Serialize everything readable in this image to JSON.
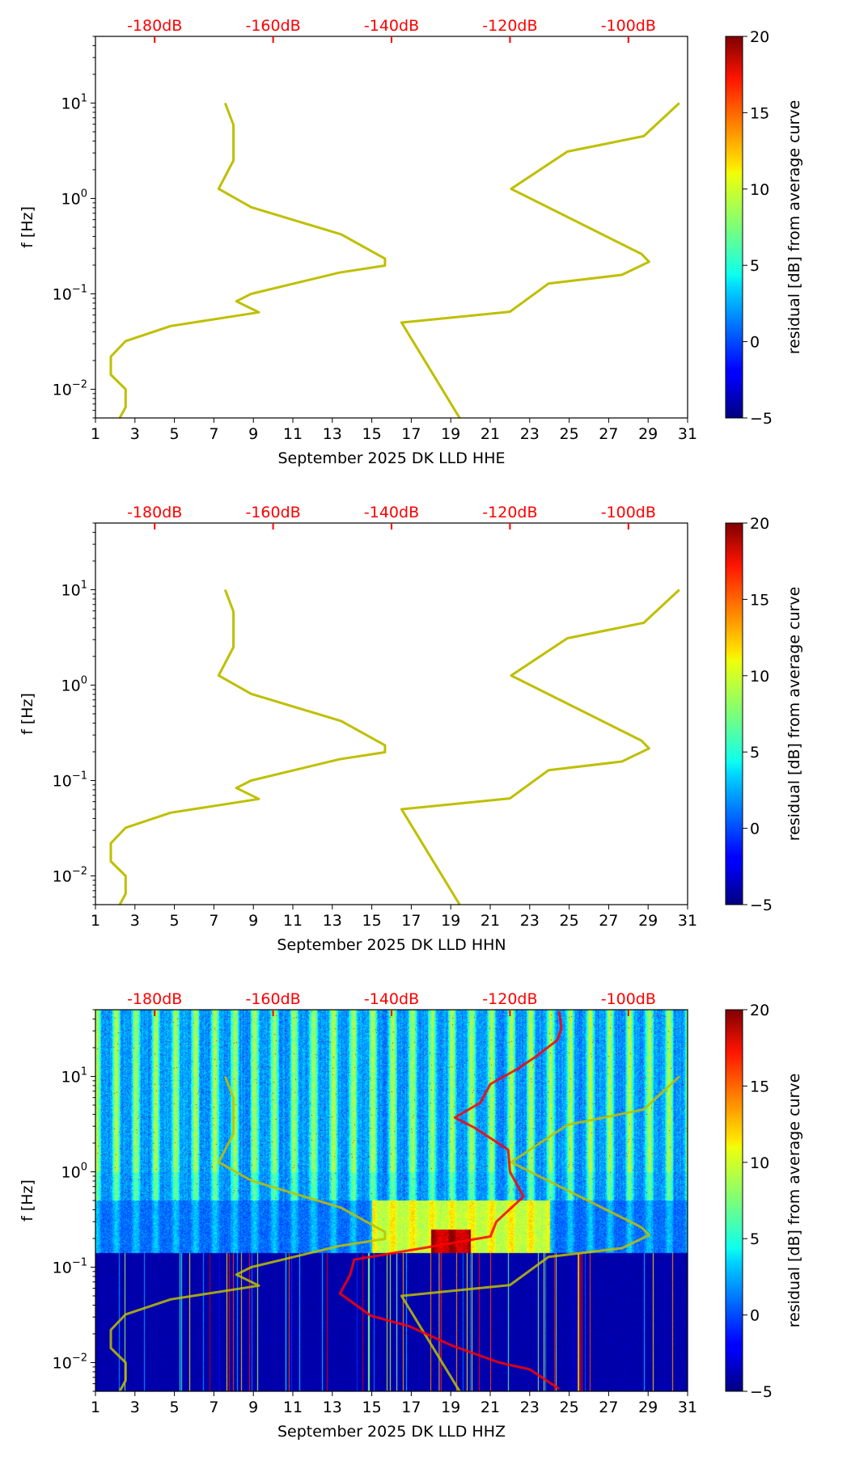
{
  "chart_data": [
    {
      "type": "line",
      "title": "",
      "xlabel": "September 2025 DK LLD  HHE",
      "ylabel": "f [Hz]",
      "heatmap": false,
      "red_curve": false
    },
    {
      "type": "line",
      "title": "",
      "xlabel": "September 2025 DK LLD  HHN",
      "ylabel": "f [Hz]",
      "heatmap": false,
      "red_curve": false
    },
    {
      "type": "heatmap",
      "title": "",
      "xlabel": "September 2025 DK LLD  HHZ",
      "ylabel": "f [Hz]",
      "heatmap": true,
      "red_curve": true
    }
  ],
  "axes": {
    "x_range_days": [
      1,
      31
    ],
    "x_ticks": [
      "1",
      "3",
      "5",
      "7",
      "9",
      "11",
      "13",
      "15",
      "17",
      "19",
      "21",
      "23",
      "25",
      "27",
      "29",
      "31"
    ],
    "y_scale": "log",
    "y_range_hz": [
      0.005,
      50
    ],
    "y_ticks": [
      {
        "base": "10",
        "exp": "1",
        "value": 10
      },
      {
        "base": "10",
        "exp": "0",
        "value": 1
      },
      {
        "base": "10",
        "exp": "−1",
        "value": 0.1
      },
      {
        "base": "10",
        "exp": "−2",
        "value": 0.01
      }
    ],
    "top_db_ticks": [
      {
        "label": "-180dB",
        "db": -180,
        "day": 4
      },
      {
        "label": "-160dB",
        "db": -160,
        "day": 10
      },
      {
        "label": "-140dB",
        "db": -140,
        "day": 16
      },
      {
        "label": "-120dB",
        "db": -120,
        "day": 22
      },
      {
        "label": "-100dB",
        "db": -100,
        "day": 28
      }
    ],
    "top_axis_color": "#ff0000"
  },
  "colorbar": {
    "label": "residual [dB] from average curve",
    "range": [
      -5,
      20
    ],
    "ticks": [
      "−5",
      "0",
      "5",
      "10",
      "15",
      "20"
    ],
    "colormap": "jet"
  },
  "curves": {
    "low_noise_model": {
      "color": "#bfbf00",
      "points_db_hz": [
        [
          -168.1,
          10
        ],
        [
          -166.7,
          5.9
        ],
        [
          -166.7,
          2.5
        ],
        [
          -169.2,
          1.26
        ],
        [
          -163.7,
          0.81
        ],
        [
          -148.5,
          0.42
        ],
        [
          -141.1,
          0.234
        ],
        [
          -141.1,
          0.198
        ],
        [
          -148.8,
          0.167
        ],
        [
          -163.7,
          0.1
        ],
        [
          -166.2,
          0.0835
        ],
        [
          -162.4,
          0.064
        ],
        [
          -177.3,
          0.046
        ],
        [
          -184.9,
          0.032
        ],
        [
          -187.4,
          0.022
        ],
        [
          -187.4,
          0.0142
        ],
        [
          -184.9,
          0.01
        ],
        [
          -184.9,
          0.0065
        ],
        [
          -185.9,
          0.005
        ]
      ]
    },
    "high_noise_model": {
      "color": "#bfbf00",
      "points_db_hz": [
        [
          -91.4,
          10
        ],
        [
          -97.4,
          4.5
        ],
        [
          -110.3,
          3.1
        ],
        [
          -119.8,
          1.26
        ],
        [
          -97.8,
          0.262
        ],
        [
          -96.5,
          0.217
        ],
        [
          -101.1,
          0.158
        ],
        [
          -113.5,
          0.128
        ],
        [
          -120.0,
          0.065
        ],
        [
          -138.3,
          0.05
        ],
        [
          -128.5,
          0.005
        ]
      ]
    },
    "hhz_average": {
      "color": "#ff0000",
      "points_db_hz": [
        [
          -111.7,
          48
        ],
        [
          -111.3,
          32
        ],
        [
          -112,
          24
        ],
        [
          -115.7,
          16
        ],
        [
          -118.7,
          12
        ],
        [
          -123.3,
          8.3
        ],
        [
          -125,
          5.3
        ],
        [
          -129.3,
          3.7
        ],
        [
          -126,
          2.9
        ],
        [
          -120.3,
          1.7
        ],
        [
          -120,
          1.0
        ],
        [
          -117.7,
          0.55
        ],
        [
          -122.3,
          0.3
        ],
        [
          -123.3,
          0.21
        ],
        [
          -134.3,
          0.16
        ],
        [
          -146.3,
          0.12
        ],
        [
          -147,
          0.083
        ],
        [
          -148.7,
          0.053
        ],
        [
          -143.5,
          0.031
        ],
        [
          -137,
          0.024
        ],
        [
          -129.7,
          0.015
        ],
        [
          -121.8,
          0.01
        ],
        [
          -116.7,
          0.0085
        ],
        [
          -111.7,
          0.0053
        ]
      ]
    }
  }
}
